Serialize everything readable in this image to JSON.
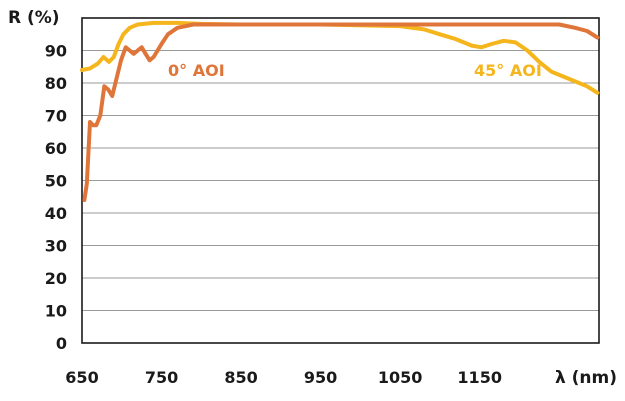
{
  "chart_data": {
    "type": "line",
    "title": "",
    "xlabel": "λ (nm)",
    "ylabel": "R (%)",
    "xlim": [
      650,
      1300
    ],
    "ylim": [
      0,
      100
    ],
    "xticks": [
      "650",
      "750",
      "850",
      "950",
      "1050",
      "1150"
    ],
    "yticks": [
      "0",
      "10",
      "20",
      "30",
      "40",
      "50",
      "60",
      "70",
      "80",
      "90"
    ],
    "grid": true,
    "series": [
      {
        "name": "0° AOI",
        "color": "#e0753a",
        "x": [
          653,
          656,
          660,
          664,
          668,
          673,
          678,
          683,
          688,
          693,
          699,
          705,
          710,
          715,
          720,
          725,
          730,
          735,
          740,
          745,
          750,
          758,
          770,
          790,
          820,
          900,
          1000,
          1100,
          1150,
          1200,
          1250,
          1270,
          1285,
          1298
        ],
        "y": [
          44,
          49,
          68,
          67,
          67,
          70,
          79,
          78,
          76,
          81,
          87,
          91,
          90,
          89,
          90,
          91,
          89,
          87,
          88,
          90,
          92,
          95,
          97,
          98,
          98,
          98,
          98,
          98,
          98,
          98,
          98,
          97,
          96,
          94
        ]
      },
      {
        "name": "45° AOI",
        "color": "#f5b51c",
        "x": [
          650,
          660,
          670,
          677,
          684,
          690,
          696,
          702,
          710,
          720,
          740,
          770,
          800,
          850,
          950,
          1050,
          1080,
          1100,
          1120,
          1140,
          1152,
          1165,
          1180,
          1195,
          1210,
          1225,
          1240,
          1255,
          1270,
          1285,
          1298
        ],
        "y": [
          84,
          84.5,
          86,
          88,
          86.5,
          88,
          92,
          95,
          97,
          98,
          98.5,
          98.5,
          98.2,
          98,
          98,
          97.5,
          96.5,
          95,
          93.5,
          91.5,
          91,
          92,
          93,
          92.5,
          90,
          86.5,
          83.5,
          82,
          80.5,
          79,
          77
        ]
      }
    ]
  }
}
